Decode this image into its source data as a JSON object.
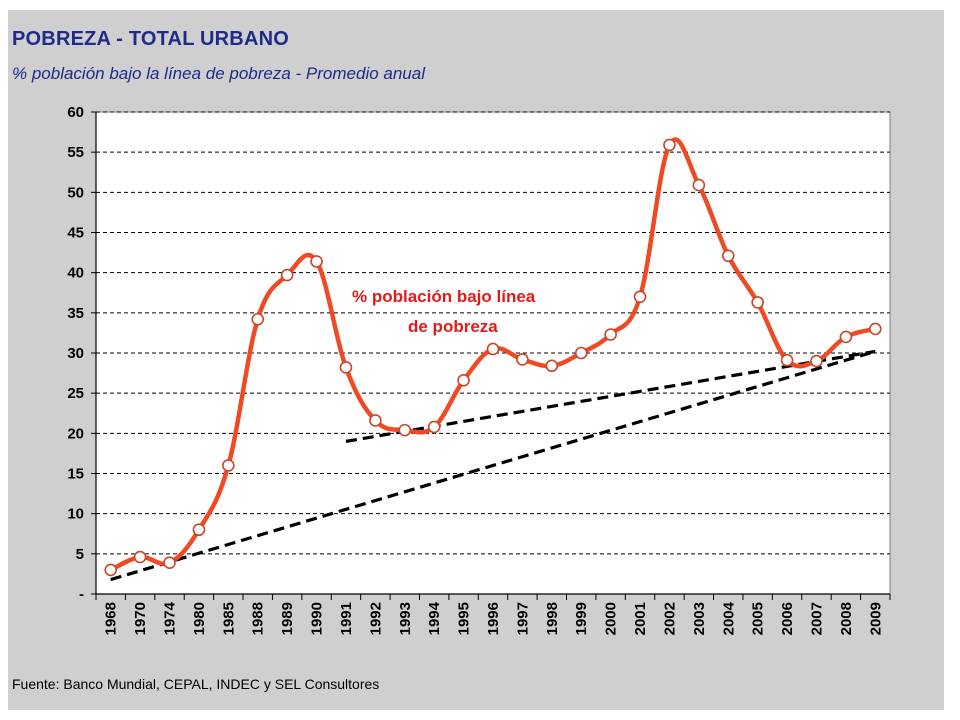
{
  "header": {
    "title": "POBREZA  - TOTAL URBANO",
    "subtitle": "% población bajo la línea de pobreza - Promedio anual"
  },
  "footer": {
    "source": "Fuente: Banco Mundial, CEPAL,  INDEC y SEL Consultores"
  },
  "colors": {
    "panel_background": "#cfcfcf",
    "plot_background": "#ffffff",
    "title_color": "#1f2a8a",
    "series_color": "#f04a24",
    "trend_color": "#000000"
  },
  "chart_data": {
    "type": "line",
    "title": "",
    "xlabel": "",
    "ylabel": "",
    "categories": [
      "1968",
      "1970",
      "1974",
      "1980",
      "1985",
      "1988",
      "1989",
      "1990",
      "1991",
      "1992",
      "1993",
      "1994",
      "1995",
      "1996",
      "1997",
      "1998",
      "1999",
      "2000",
      "2001",
      "2002",
      "2003",
      "2004",
      "2005",
      "2006",
      "2007",
      "2008",
      "2009"
    ],
    "y_ticks": [
      "-",
      "5",
      "10",
      "15",
      "20",
      "25",
      "30",
      "35",
      "40",
      "45",
      "50",
      "55",
      "60"
    ],
    "ylim": [
      0,
      60
    ],
    "grid": "horizontal dashed",
    "series": [
      {
        "name": "% población bajo línea de pobreza",
        "values": [
          3,
          4.6,
          3.9,
          8,
          16,
          34.2,
          39.7,
          41.4,
          28.2,
          21.6,
          20.4,
          20.8,
          26.6,
          30.5,
          29.2,
          28.4,
          30,
          32.3,
          37,
          55.9,
          50.9,
          42.1,
          36.3,
          29.1,
          29,
          32,
          33
        ]
      }
    ],
    "trend_lines": [
      {
        "style": "dashed",
        "from": {
          "x": "1968",
          "y": 1.8
        },
        "to": {
          "x": "2009",
          "y": 30.2
        }
      },
      {
        "style": "dashed",
        "from": {
          "x": "1991",
          "y": 19
        },
        "to": {
          "x": "2009",
          "y": 30.2
        }
      }
    ],
    "annotation": {
      "lines": [
        "% población bajo línea",
        "de pobreza"
      ]
    }
  }
}
